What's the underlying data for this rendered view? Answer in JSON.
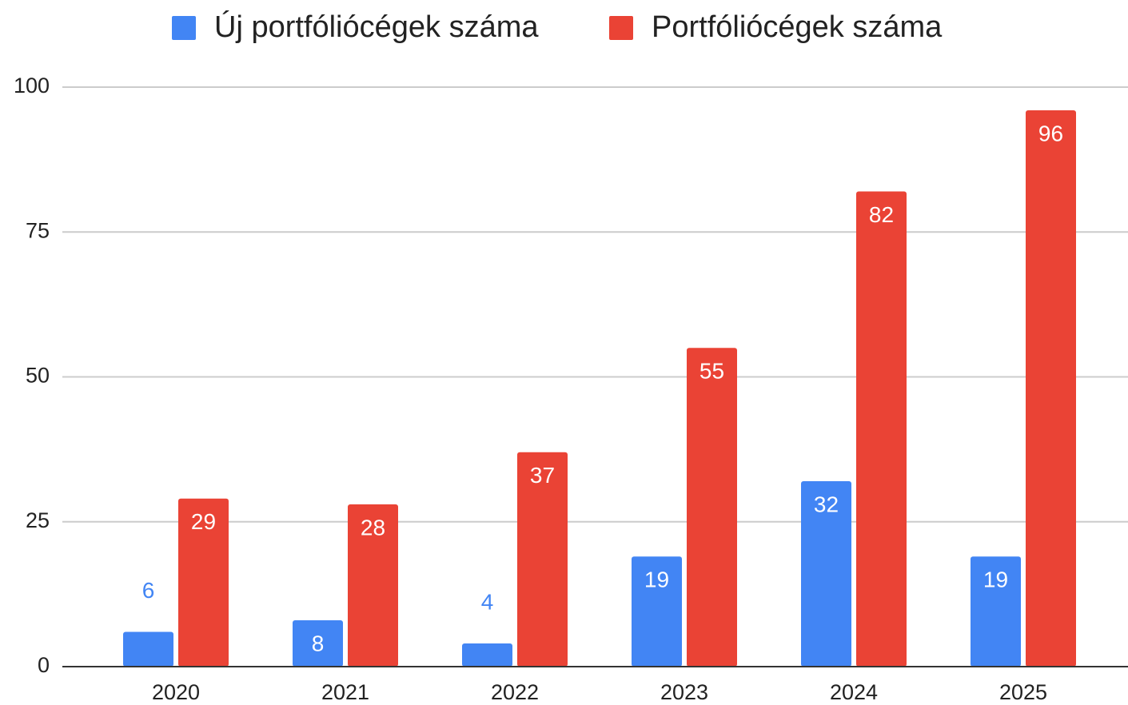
{
  "chart_data": {
    "type": "bar",
    "categories": [
      "2020",
      "2021",
      "2022",
      "2023",
      "2024",
      "2025"
    ],
    "series": [
      {
        "name": "Új portfóliócégek száma",
        "color": "#4285f4",
        "values": [
          6,
          8,
          4,
          19,
          32,
          19
        ]
      },
      {
        "name": "Portfóliócégek száma",
        "color": "#ea4335",
        "values": [
          29,
          28,
          37,
          55,
          82,
          96
        ]
      }
    ],
    "ylim": [
      0,
      100
    ],
    "yticks": [
      0,
      25,
      50,
      75,
      100
    ],
    "grid": true,
    "legend": "top"
  }
}
